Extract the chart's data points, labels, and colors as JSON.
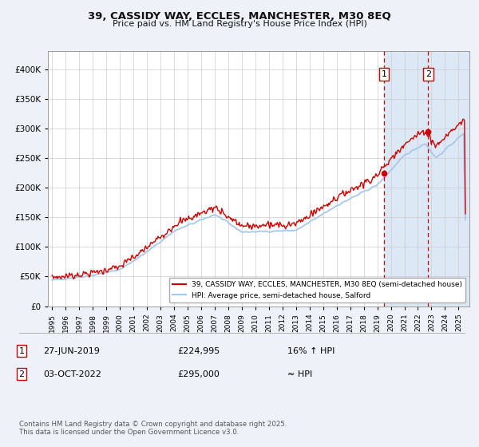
{
  "title": "39, CASSIDY WAY, ECCLES, MANCHESTER, M30 8EQ",
  "subtitle": "Price paid vs. HM Land Registry's House Price Index (HPI)",
  "ytick_values": [
    0,
    50000,
    100000,
    150000,
    200000,
    250000,
    300000,
    350000,
    400000
  ],
  "ylim": [
    0,
    430000
  ],
  "xlim_start": 1994.7,
  "xlim_end": 2025.8,
  "hpi_color": "#a8c8e8",
  "price_color": "#cc0000",
  "marker1_date": 2019.49,
  "marker1_price": 224995,
  "marker1_label": "1",
  "marker2_date": 2022.75,
  "marker2_price": 295000,
  "marker2_label": "2",
  "shade_start": 2019.49,
  "shade_end": 2025.8,
  "legend_entry1": "39, CASSIDY WAY, ECCLES, MANCHESTER, M30 8EQ (semi-detached house)",
  "legend_entry2": "HPI: Average price, semi-detached house, Salford",
  "annotation1_date": "27-JUN-2019",
  "annotation1_price": "£224,995",
  "annotation1_note": "16% ↑ HPI",
  "annotation2_date": "03-OCT-2022",
  "annotation2_price": "£295,000",
  "annotation2_note": "≈ HPI",
  "footer": "Contains HM Land Registry data © Crown copyright and database right 2025.\nThis data is licensed under the Open Government Licence v3.0.",
  "background_color": "#eef2f8",
  "plot_bg": "#ffffff",
  "shade_color": "#dce8f5",
  "grid_color": "#cccccc",
  "vline_color": "#cc0000"
}
